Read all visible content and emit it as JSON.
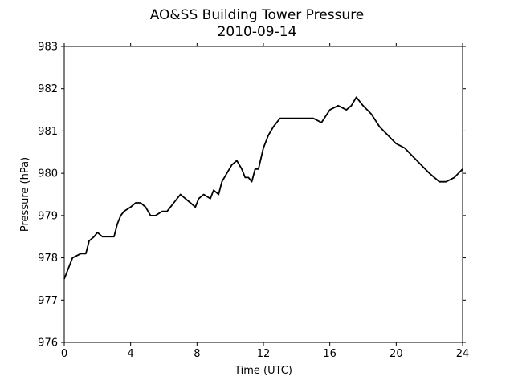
{
  "chart_data": {
    "type": "line",
    "title": "AO&SS Building Tower Pressure",
    "subtitle": "2010-09-14",
    "xlabel": "Time (UTC)",
    "ylabel": "Pressure (hPa)",
    "xlim": [
      0,
      24
    ],
    "ylim": [
      976,
      983
    ],
    "xticks": [
      0,
      4,
      8,
      12,
      16,
      20,
      24
    ],
    "yticks": [
      976,
      977,
      978,
      979,
      980,
      981,
      982,
      983
    ],
    "grid": false,
    "legend": "none",
    "line_color": "#000000",
    "series": [
      {
        "x": [
          0,
          0.2,
          0.5,
          1.0,
          1.3,
          1.5,
          1.8,
          2.0,
          2.3,
          2.6,
          3.0,
          3.2,
          3.4,
          3.6,
          4.0,
          4.3,
          4.6,
          4.9,
          5.2,
          5.5,
          5.9,
          6.2,
          6.6,
          7.0,
          7.3,
          7.6,
          7.9,
          8.1,
          8.4,
          8.8,
          9.0,
          9.3,
          9.5,
          9.8,
          10.1,
          10.4,
          10.7,
          10.9,
          11.1,
          11.3,
          11.5,
          11.7,
          12.0,
          12.3,
          12.6,
          13.0,
          13.5,
          14.0,
          14.5,
          15.0,
          15.5,
          16.0,
          16.5,
          17.0,
          17.3,
          17.6,
          18.0,
          18.5,
          19.0,
          19.5,
          20.0,
          20.5,
          21.0,
          21.5,
          22.0,
          22.3,
          22.6,
          23.0,
          23.5,
          24.0
        ],
        "values": [
          977.5,
          977.7,
          978.0,
          978.1,
          978.1,
          978.4,
          978.5,
          978.6,
          978.5,
          978.5,
          978.5,
          978.8,
          979.0,
          979.1,
          979.2,
          979.3,
          979.3,
          979.2,
          979.0,
          979.0,
          979.1,
          979.1,
          979.3,
          979.5,
          979.4,
          979.3,
          979.2,
          979.4,
          979.5,
          979.4,
          979.6,
          979.5,
          979.8,
          980.0,
          980.2,
          980.3,
          980.1,
          979.9,
          979.9,
          979.8,
          980.1,
          980.1,
          980.6,
          980.9,
          981.1,
          981.3,
          981.3,
          981.3,
          981.3,
          981.3,
          981.2,
          981.5,
          981.6,
          981.5,
          981.6,
          981.8,
          981.6,
          981.4,
          981.1,
          980.9,
          980.7,
          980.6,
          980.4,
          980.2,
          980.0,
          979.9,
          979.8,
          979.8,
          979.9,
          980.1
        ]
      }
    ]
  }
}
